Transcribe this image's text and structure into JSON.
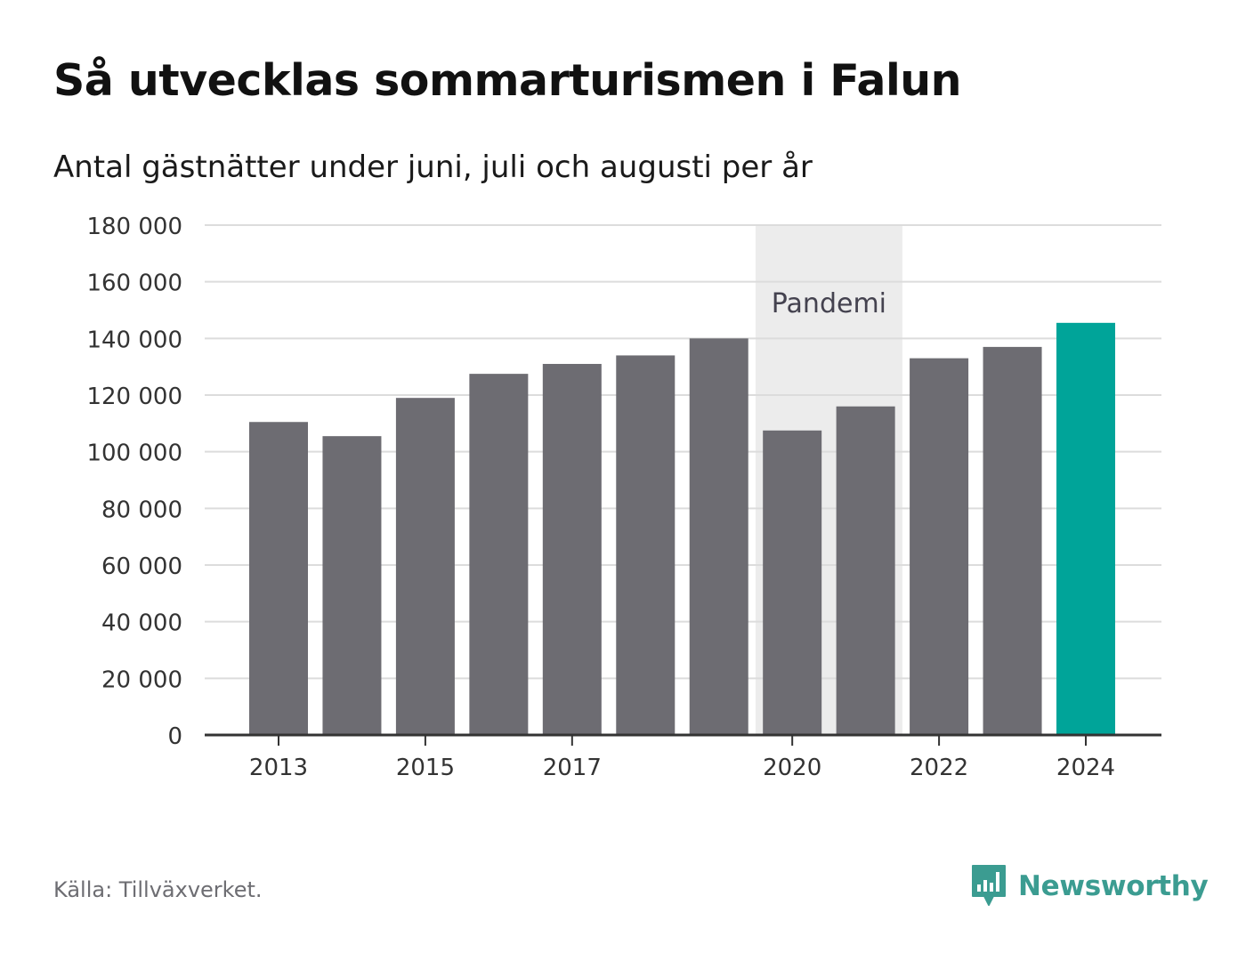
{
  "header": {
    "title": "Så utvecklas sommarturismen i Falun",
    "subtitle": "Antal gästnätter under juni, juli och augusti per år"
  },
  "footer": {
    "source": "Källa: Tillväxverket.",
    "brand": "Newsworthy"
  },
  "colors": {
    "bar": "#6d6c72",
    "highlight": "#00a499",
    "annotation_band": "#ececec",
    "grid": "#dcdcdc",
    "axis": "#333333",
    "brand": "#3b9c91"
  },
  "chart_data": {
    "type": "bar",
    "categories": [
      "2013",
      "2014",
      "2015",
      "2016",
      "2017",
      "2018",
      "2019",
      "2020",
      "2021",
      "2022",
      "2023",
      "2024"
    ],
    "values": [
      110500,
      105500,
      119000,
      127500,
      131000,
      134000,
      140000,
      107500,
      116000,
      133000,
      137000,
      145500
    ],
    "highlight_category": "2024",
    "x_tick_labels": [
      "2013",
      "2015",
      "2017",
      "2020",
      "2022",
      "2024"
    ],
    "y_ticks": [
      0,
      20000,
      40000,
      60000,
      80000,
      100000,
      120000,
      140000,
      160000,
      180000
    ],
    "y_tick_labels": [
      "0",
      "20 000",
      "40 000",
      "60 000",
      "80 000",
      "100 000",
      "120 000",
      "140 000",
      "160 000",
      "180 000"
    ],
    "ylim": [
      0,
      180000
    ],
    "grid": true,
    "annotation": {
      "label": "Pandemi",
      "from": "2020",
      "to": "2021"
    }
  }
}
